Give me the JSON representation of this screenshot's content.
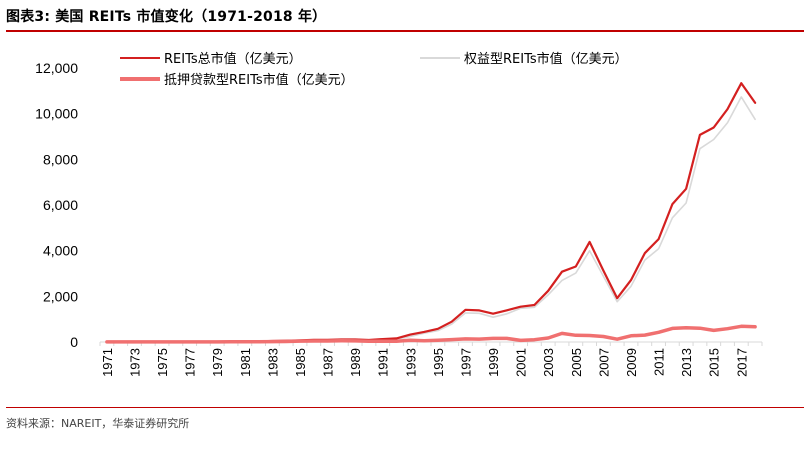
{
  "header": {
    "title": "图表3:   美国 REITs 市值变化（1971-2018 年）"
  },
  "footer": {
    "source": "资料来源：NAREIT，华泰证券研究所"
  },
  "colors": {
    "accent": "#c00000",
    "total": "#d42020",
    "equity": "#d9d9d9",
    "mortgage": "#f07070"
  },
  "chart_data": {
    "type": "line",
    "title": "",
    "xlabel": "",
    "ylabel": "",
    "ylim": [
      0,
      12000
    ],
    "yticks": [
      "0",
      "2,000",
      "4,000",
      "6,000",
      "8,000",
      "10,000",
      "12,000"
    ],
    "ytick_values": [
      0,
      2000,
      4000,
      6000,
      8000,
      10000,
      12000
    ],
    "grid": false,
    "legend_position": "top",
    "x": [
      1971,
      1972,
      1973,
      1974,
      1975,
      1976,
      1977,
      1978,
      1979,
      1980,
      1981,
      1982,
      1983,
      1984,
      1985,
      1986,
      1987,
      1988,
      1989,
      1990,
      1991,
      1992,
      1993,
      1994,
      1995,
      1996,
      1997,
      1998,
      1999,
      2000,
      2001,
      2002,
      2003,
      2004,
      2005,
      2006,
      2007,
      2008,
      2009,
      2010,
      2011,
      2012,
      2013,
      2014,
      2015,
      2016,
      2017,
      2018
    ],
    "xticks": [
      "1971",
      "1973",
      "1975",
      "1977",
      "1979",
      "1981",
      "1983",
      "1985",
      "1987",
      "1989",
      "1991",
      "1993",
      "1995",
      "1997",
      "1999",
      "2001",
      "2003",
      "2005",
      "2007",
      "2009",
      "2011",
      "2013",
      "2015",
      "2017"
    ],
    "series": [
      {
        "name": "REITs总市值（亿美元）",
        "color": "#d42020",
        "values": [
          15,
          14,
          10,
          7,
          9,
          11,
          10,
          10,
          12,
          22,
          27,
          30,
          43,
          56,
          76,
          93,
          96,
          109,
          111,
          87,
          129,
          159,
          322,
          442,
          578,
          888,
          1409,
          1383,
          1241,
          1389,
          1546,
          1620,
          2242,
          3079,
          3308,
          4382,
          3125,
          1917,
          2711,
          3890,
          4508,
          6039,
          6708,
          9070,
          9392,
          10199,
          11336,
          10478
        ]
      },
      {
        "name": "权益型REITs市值（亿美元）",
        "color": "#d9d9d9",
        "values": [
          3,
          3,
          2,
          1,
          2,
          3,
          4,
          6,
          8,
          9,
          10,
          10,
          15,
          21,
          36,
          49,
          51,
          55,
          63,
          57,
          94,
          122,
          243,
          386,
          498,
          782,
          1274,
          1258,
          1085,
          1234,
          1478,
          1518,
          2065,
          2700,
          3016,
          4000,
          2883,
          1767,
          2440,
          3589,
          4083,
          5440,
          6087,
          8466,
          8869,
          9605,
          10734,
          9755
        ]
      },
      {
        "name": "抵押贷款型REITs市值（亿美元）",
        "color": "#f07070",
        "values": [
          5,
          5,
          4,
          3,
          3,
          3,
          4,
          5,
          5,
          7,
          8,
          10,
          18,
          22,
          40,
          45,
          45,
          54,
          48,
          30,
          35,
          37,
          79,
          56,
          80,
          106,
          135,
          125,
          156,
          156,
          68,
          102,
          177,
          377,
          292,
          285,
          242,
          124,
          271,
          304,
          425,
          597,
          626,
          604,
          506,
          583,
          686,
          667
        ]
      }
    ]
  }
}
